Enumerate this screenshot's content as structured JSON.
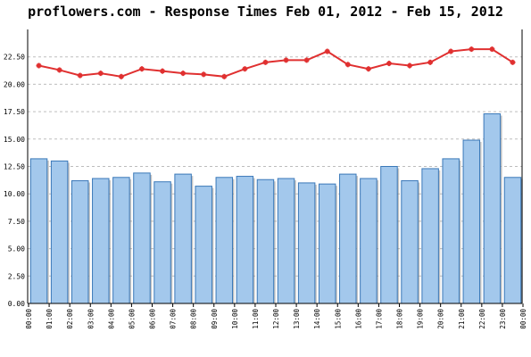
{
  "chart_data": {
    "type": "bar",
    "title": "proflowers.com - Response Times Feb 01, 2012 - Feb 15, 2012",
    "xlabel": "",
    "ylabel": "",
    "ylim": [
      0,
      25
    ],
    "y_tick_labels": [
      "0.00",
      "2.50",
      "5.00",
      "7.50",
      "10.00",
      "12.50",
      "15.00",
      "17.50",
      "20.00",
      "22.50"
    ],
    "categories": [
      "00:00",
      "01:00",
      "02:00",
      "03:00",
      "04:00",
      "05:00",
      "06:00",
      "07:00",
      "08:00",
      "09:00",
      "10:00",
      "11:00",
      "12:00",
      "13:00",
      "14:00",
      "15:00",
      "16:00",
      "17:00",
      "18:00",
      "19:00",
      "20:00",
      "21:00",
      "22:00",
      "23:00"
    ],
    "x_tick_labels": [
      "00:00",
      "01:00",
      "02:00",
      "03:00",
      "04:00",
      "05:00",
      "06:00",
      "07:00",
      "08:00",
      "09:00",
      "10:00",
      "11:00",
      "12:00",
      "13:00",
      "14:00",
      "15:00",
      "16:00",
      "17:00",
      "18:00",
      "19:00",
      "20:00",
      "21:00",
      "22:00",
      "23:00",
      "00:00"
    ],
    "grid": true,
    "legend": "none",
    "series": [
      {
        "type": "bar",
        "color": "#a3c8ec",
        "values": [
          13.2,
          13.0,
          11.2,
          11.4,
          11.5,
          11.9,
          11.1,
          11.8,
          10.7,
          11.5,
          11.6,
          11.3,
          11.4,
          11.0,
          10.9,
          11.8,
          11.4,
          12.5,
          11.2,
          12.3,
          13.2,
          14.9,
          17.3,
          11.5
        ]
      },
      {
        "type": "line",
        "color": "#e03030",
        "values": [
          21.7,
          21.3,
          20.8,
          21.0,
          20.7,
          21.4,
          21.2,
          21.0,
          20.9,
          20.7,
          21.4,
          22.0,
          22.2,
          22.2,
          23.0,
          21.8,
          21.4,
          21.9,
          21.7,
          22.0,
          23.0,
          23.2,
          23.2,
          22.0
        ]
      }
    ]
  }
}
